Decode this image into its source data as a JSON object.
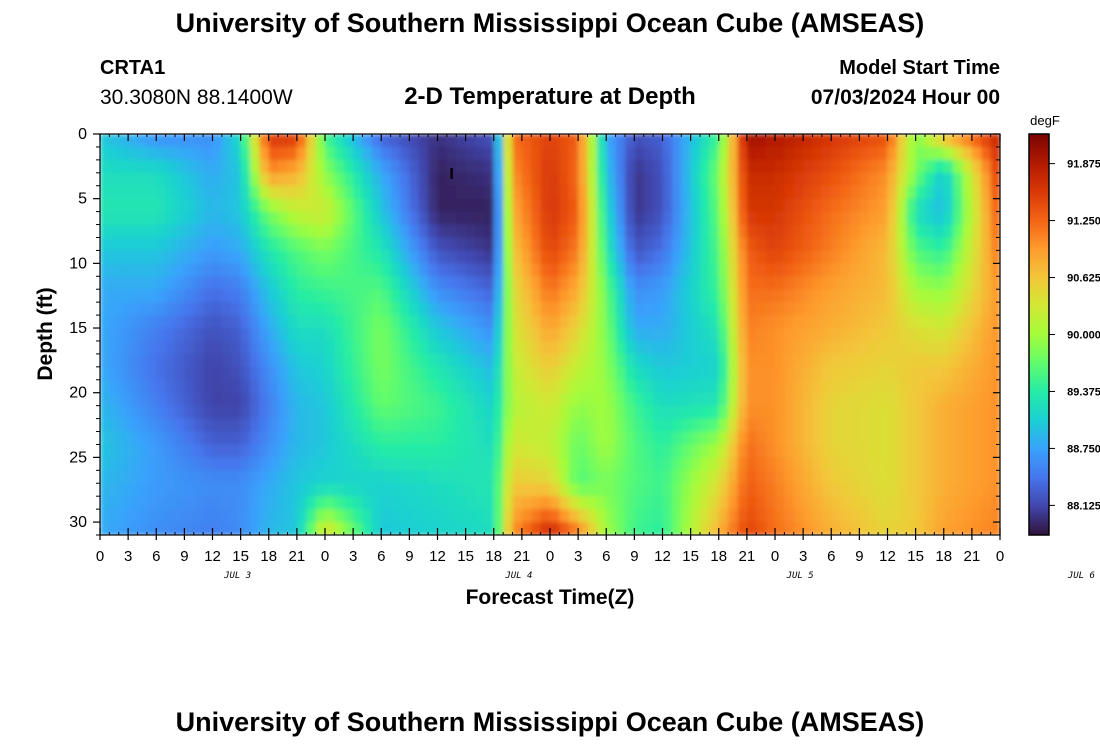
{
  "header": {
    "title": "University of Southern Mississippi Ocean Cube (AMSEAS)",
    "station_name": "CRTA1",
    "station_coords": "30.3080N  88.1400W",
    "plot_title": "2-D Temperature at Depth",
    "model_start_label": "Model Start Time",
    "model_start_value": "07/03/2024 Hour 00"
  },
  "footer": {
    "title": "University of Southern Mississippi Ocean Cube (AMSEAS)"
  },
  "colors": {
    "colormap": [
      "#30123b",
      "#4145ab",
      "#4675ed",
      "#39a2fc",
      "#1bcfd4",
      "#24eca6",
      "#61fc6c",
      "#a4fc3b",
      "#d1e834",
      "#f3c63a",
      "#fe9b2d",
      "#f36315",
      "#d93806",
      "#b11901",
      "#7a0402"
    ]
  },
  "chart_data": {
    "type": "heatmap",
    "xlabel": "Forecast Time(Z)",
    "ylabel": "Depth (ft)",
    "colorbar_unit": "degF",
    "colorbar_ticks": [
      "91.875",
      "91.250",
      "90.625",
      "90.000",
      "89.375",
      "88.750",
      "88.125"
    ],
    "colorbar_range": [
      87.8,
      92.2
    ],
    "x_ticks": [
      "0",
      "3",
      "6",
      "9",
      "12",
      "15",
      "18",
      "21",
      "0",
      "3",
      "6",
      "9",
      "12",
      "15",
      "18",
      "21",
      "0",
      "3",
      "6",
      "9",
      "12",
      "15",
      "18",
      "21",
      "0",
      "3",
      "6",
      "9",
      "12",
      "15",
      "18",
      "21",
      "0"
    ],
    "x_hours": [
      0,
      3,
      6,
      9,
      12,
      15,
      18,
      21,
      24,
      27,
      30,
      33,
      36,
      39,
      42,
      45,
      48,
      51,
      54,
      57,
      60,
      63,
      66,
      69,
      72,
      75,
      78,
      81,
      84,
      87,
      90,
      93,
      96
    ],
    "day_labels": [
      {
        "label": "JUL 3",
        "hour": 15
      },
      {
        "label": "JUL 4",
        "hour": 45
      },
      {
        "label": "JUL 5",
        "hour": 75
      },
      {
        "label": "JUL 6",
        "hour": 105
      }
    ],
    "y_ticks": [
      "0",
      "5",
      "10",
      "15",
      "20",
      "25",
      "30"
    ],
    "y_values": [
      0,
      5,
      10,
      15,
      20,
      25,
      30
    ],
    "xlim": [
      0,
      96
    ],
    "ylim": [
      0,
      31
    ],
    "depth_levels_ft": [
      0,
      3,
      6,
      9,
      12,
      15,
      18,
      21,
      24,
      27,
      31
    ],
    "hours": [
      0,
      6,
      12,
      15,
      18,
      21,
      24,
      30,
      36,
      42,
      44,
      48,
      51,
      54,
      57,
      60,
      66,
      69,
      72,
      78,
      84,
      87,
      90,
      96
    ],
    "temperature_degF": [
      [
        89.0,
        88.6,
        88.6,
        89.2,
        91.6,
        91.6,
        89.5,
        88.3,
        88.0,
        88.2,
        91.2,
        91.5,
        91.3,
        88.8,
        88.2,
        88.3,
        89.5,
        92.0,
        91.9,
        91.6,
        91.4,
        89.8,
        90.8,
        91.8
      ],
      [
        89.2,
        89.2,
        88.8,
        89.0,
        91.0,
        90.8,
        89.9,
        88.8,
        87.9,
        88.0,
        91.0,
        91.6,
        91.2,
        89.0,
        88.0,
        88.2,
        89.8,
        91.7,
        91.7,
        91.4,
        91.0,
        89.8,
        89.0,
        91.6
      ],
      [
        89.3,
        89.3,
        88.9,
        89.0,
        89.8,
        90.2,
        90.3,
        89.0,
        87.9,
        87.9,
        90.8,
        91.6,
        91.3,
        89.2,
        88.0,
        88.2,
        89.7,
        91.6,
        91.6,
        91.2,
        90.9,
        89.2,
        88.9,
        91.4
      ],
      [
        89.0,
        89.0,
        88.7,
        88.8,
        89.3,
        89.6,
        89.8,
        89.3,
        88.2,
        88.0,
        90.6,
        91.5,
        91.1,
        89.4,
        88.2,
        88.4,
        89.6,
        91.3,
        91.5,
        91.1,
        90.7,
        89.6,
        89.4,
        91.2
      ],
      [
        88.8,
        88.8,
        88.4,
        88.5,
        89.0,
        89.4,
        89.5,
        89.6,
        88.6,
        88.3,
        90.4,
        91.2,
        90.8,
        89.7,
        88.6,
        88.7,
        89.5,
        91.2,
        91.2,
        90.9,
        90.7,
        90.0,
        89.9,
        91.0
      ],
      [
        88.8,
        88.5,
        88.2,
        88.3,
        88.8,
        89.2,
        89.2,
        89.8,
        89.0,
        88.6,
        90.3,
        90.9,
        90.5,
        89.8,
        88.8,
        88.8,
        89.3,
        91.1,
        91.0,
        90.8,
        90.6,
        90.4,
        90.3,
        91.0
      ],
      [
        88.8,
        88.4,
        88.1,
        88.2,
        88.6,
        89.0,
        89.1,
        89.8,
        89.3,
        88.9,
        90.2,
        90.6,
        90.2,
        89.9,
        89.2,
        89.0,
        89.1,
        91.0,
        91.0,
        90.6,
        90.5,
        90.6,
        90.6,
        91.0
      ],
      [
        88.9,
        88.5,
        88.1,
        88.1,
        88.5,
        88.9,
        89.0,
        89.7,
        89.5,
        89.1,
        90.1,
        90.3,
        89.9,
        90.0,
        89.5,
        89.2,
        89.3,
        91.0,
        91.0,
        90.5,
        90.4,
        90.6,
        90.8,
        91.0
      ],
      [
        89.0,
        88.7,
        88.3,
        88.3,
        88.6,
        88.9,
        89.0,
        89.4,
        89.4,
        89.2,
        90.3,
        90.2,
        89.7,
        90.0,
        89.6,
        89.4,
        90.0,
        91.2,
        91.0,
        90.5,
        90.4,
        90.6,
        90.8,
        91.0
      ],
      [
        88.9,
        88.7,
        88.6,
        88.6,
        88.8,
        89.0,
        89.1,
        89.1,
        89.2,
        89.3,
        90.6,
        90.5,
        89.6,
        89.8,
        89.6,
        89.5,
        90.4,
        91.3,
        91.1,
        90.6,
        90.4,
        90.6,
        90.8,
        91.0
      ],
      [
        88.8,
        88.6,
        88.5,
        88.6,
        88.9,
        89.0,
        90.5,
        89.0,
        89.1,
        89.2,
        91.0,
        91.8,
        91.2,
        90.0,
        89.5,
        89.4,
        90.8,
        91.5,
        91.2,
        90.8,
        90.5,
        90.6,
        90.9,
        91.1
      ]
    ],
    "annotation": {
      "text": "I",
      "hour": 37.5,
      "depth_ft": 3
    }
  }
}
